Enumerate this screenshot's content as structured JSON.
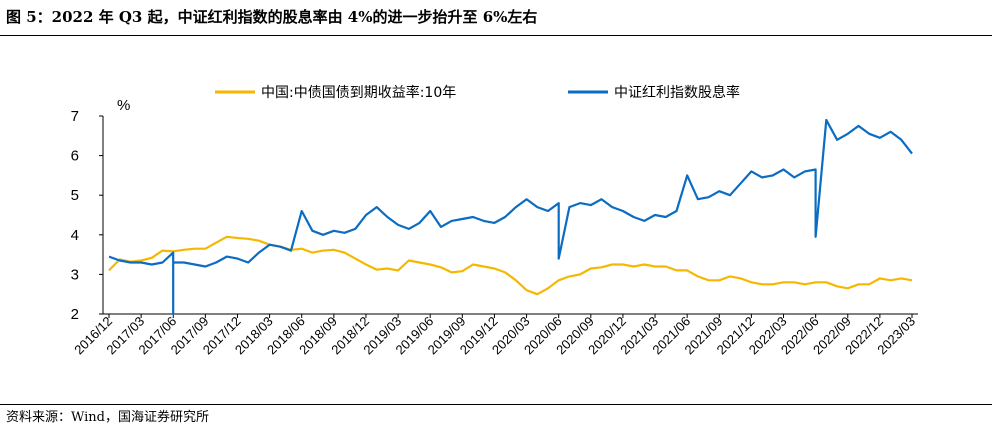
{
  "figure_title": "图 5：2022 年 Q3 起，中证红利指数的股息率由 4%的进一步抬升至 6%左右",
  "source": "资料来源：Wind，国海证券研究所",
  "chart_data": {
    "type": "line",
    "ylabel": "%",
    "ylim": [
      2,
      7
    ],
    "yticks": [
      2,
      3,
      4,
      5,
      6,
      7
    ],
    "grid": false,
    "legend_position": "top",
    "x_tick_labels": [
      "2016/12",
      "2017/03",
      "2017/06",
      "2017/09",
      "2017/12",
      "2018/03",
      "2018/06",
      "2018/09",
      "2018/12",
      "2019/03",
      "2019/06",
      "2019/09",
      "2019/12",
      "2020/03",
      "2020/06",
      "2020/09",
      "2020/12",
      "2021/03",
      "2021/06",
      "2021/09",
      "2021/12",
      "2022/03",
      "2022/06",
      "2022/09",
      "2022/12",
      "2023/03"
    ],
    "series": [
      {
        "name": "中国:中债国债到期收益率:10年",
        "color": "#F5B800",
        "x": [
          "2016/12",
          "2017/01",
          "2017/02",
          "2017/03",
          "2017/04",
          "2017/05",
          "2017/06",
          "2017/07",
          "2017/08",
          "2017/09",
          "2017/10",
          "2017/11",
          "2017/12",
          "2018/01",
          "2018/02",
          "2018/03",
          "2018/04",
          "2018/05",
          "2018/06",
          "2018/07",
          "2018/08",
          "2018/09",
          "2018/10",
          "2018/11",
          "2018/12",
          "2019/01",
          "2019/02",
          "2019/03",
          "2019/04",
          "2019/05",
          "2019/06",
          "2019/07",
          "2019/08",
          "2019/09",
          "2019/10",
          "2019/11",
          "2019/12",
          "2020/01",
          "2020/02",
          "2020/03",
          "2020/04",
          "2020/05",
          "2020/06",
          "2020/07",
          "2020/08",
          "2020/09",
          "2020/10",
          "2020/11",
          "2020/12",
          "2021/01",
          "2021/02",
          "2021/03",
          "2021/04",
          "2021/05",
          "2021/06",
          "2021/07",
          "2021/08",
          "2021/09",
          "2021/10",
          "2021/11",
          "2021/12",
          "2022/01",
          "2022/02",
          "2022/03",
          "2022/04",
          "2022/05",
          "2022/06",
          "2022/07",
          "2022/08",
          "2022/09",
          "2022/10",
          "2022/11",
          "2022/12",
          "2023/01",
          "2023/02",
          "2023/03"
        ],
        "values": [
          3.1,
          3.38,
          3.32,
          3.35,
          3.42,
          3.6,
          3.58,
          3.62,
          3.65,
          3.65,
          3.8,
          3.95,
          3.92,
          3.9,
          3.85,
          3.75,
          3.7,
          3.62,
          3.65,
          3.55,
          3.6,
          3.62,
          3.55,
          3.4,
          3.25,
          3.12,
          3.15,
          3.1,
          3.35,
          3.3,
          3.25,
          3.18,
          3.05,
          3.08,
          3.25,
          3.2,
          3.15,
          3.05,
          2.85,
          2.6,
          2.5,
          2.65,
          2.85,
          2.95,
          3.0,
          3.15,
          3.18,
          3.25,
          3.25,
          3.2,
          3.25,
          3.2,
          3.2,
          3.1,
          3.1,
          2.95,
          2.85,
          2.85,
          2.95,
          2.9,
          2.8,
          2.75,
          2.75,
          2.8,
          2.8,
          2.75,
          2.8,
          2.8,
          2.7,
          2.65,
          2.75,
          2.75,
          2.9,
          2.85,
          2.9,
          2.85
        ]
      },
      {
        "name": "中证红利指数股息率",
        "color": "#0A6CC2",
        "x": [
          "2016/12",
          "2017/01",
          "2017/02",
          "2017/03",
          "2017/04",
          "2017/05",
          "2017/06",
          "2017/06",
          "2017/06",
          "2017/07",
          "2017/08",
          "2017/09",
          "2017/10",
          "2017/11",
          "2017/12",
          "2018/01",
          "2018/02",
          "2018/03",
          "2018/04",
          "2018/05",
          "2018/06",
          "2018/07",
          "2018/08",
          "2018/09",
          "2018/10",
          "2018/11",
          "2018/12",
          "2019/01",
          "2019/02",
          "2019/03",
          "2019/04",
          "2019/05",
          "2019/06",
          "2019/07",
          "2019/08",
          "2019/09",
          "2019/10",
          "2019/11",
          "2019/12",
          "2020/01",
          "2020/02",
          "2020/03",
          "2020/04",
          "2020/05",
          "2020/06",
          "2020/06",
          "2020/07",
          "2020/08",
          "2020/09",
          "2020/10",
          "2020/11",
          "2020/12",
          "2021/01",
          "2021/02",
          "2021/03",
          "2021/04",
          "2021/05",
          "2021/06",
          "2021/07",
          "2021/08",
          "2021/09",
          "2021/10",
          "2021/11",
          "2021/12",
          "2022/01",
          "2022/02",
          "2022/03",
          "2022/04",
          "2022/05",
          "2022/06",
          "2022/06",
          "2022/07",
          "2022/08",
          "2022/09",
          "2022/10",
          "2022/11",
          "2022/12",
          "2023/01",
          "2023/02",
          "2023/03"
        ],
        "values": [
          3.45,
          3.35,
          3.3,
          3.3,
          3.25,
          3.3,
          3.55,
          2.0,
          3.3,
          3.3,
          3.25,
          3.2,
          3.3,
          3.45,
          3.4,
          3.3,
          3.55,
          3.75,
          3.7,
          3.6,
          4.6,
          4.1,
          4.0,
          4.1,
          4.05,
          4.15,
          4.5,
          4.7,
          4.45,
          4.25,
          4.15,
          4.3,
          4.6,
          4.2,
          4.35,
          4.4,
          4.45,
          4.35,
          4.3,
          4.45,
          4.7,
          4.9,
          4.7,
          4.6,
          4.8,
          3.4,
          4.7,
          4.8,
          4.75,
          4.9,
          4.7,
          4.6,
          4.45,
          4.35,
          4.5,
          4.45,
          4.6,
          5.5,
          4.9,
          4.95,
          5.1,
          5.0,
          5.3,
          5.6,
          5.45,
          5.5,
          5.65,
          5.45,
          5.6,
          5.65,
          3.95,
          6.9,
          6.4,
          6.55,
          6.75,
          6.55,
          6.45,
          6.6,
          6.4,
          6.05
        ]
      }
    ]
  }
}
